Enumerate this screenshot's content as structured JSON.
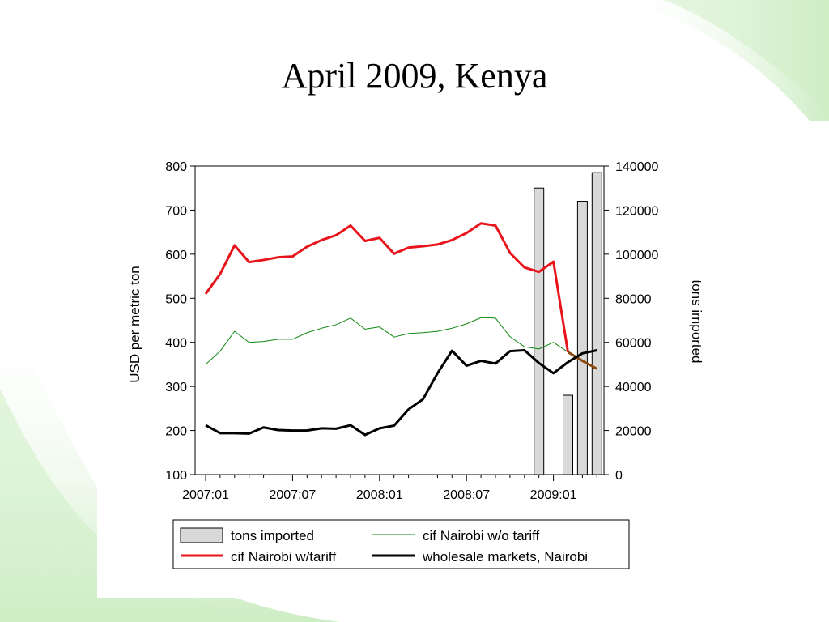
{
  "slide": {
    "title": "April 2009, Kenya"
  },
  "colors": {
    "red": "#e8141b",
    "green": "#118811",
    "black": "#000000",
    "bar_fill": "#d9d9d9",
    "bar_stroke": "#000000",
    "decor_green": "#b9e6ad"
  },
  "chart_data": {
    "type": "line",
    "title": "",
    "xlabel": "",
    "ylabel": "USD per metric ton",
    "y2label": "tons imported",
    "ylim": [
      100,
      800
    ],
    "y2lim": [
      0,
      140000
    ],
    "yticks": [
      100,
      200,
      300,
      400,
      500,
      600,
      700,
      800
    ],
    "y2ticks": [
      0,
      20000,
      40000,
      60000,
      80000,
      100000,
      120000,
      140000
    ],
    "x": [
      "2007:01",
      "2007:02",
      "2007:03",
      "2007:04",
      "2007:05",
      "2007:06",
      "2007:07",
      "2007:08",
      "2007:09",
      "2007:10",
      "2007:11",
      "2007:12",
      "2008:01",
      "2008:02",
      "2008:03",
      "2008:04",
      "2008:05",
      "2008:06",
      "2008:07",
      "2008:08",
      "2008:09",
      "2008:10",
      "2008:11",
      "2008:12",
      "2009:01",
      "2009:02",
      "2009:03",
      "2009:04"
    ],
    "xtick_labels": [
      "2007:01",
      "2007:07",
      "2008:01",
      "2008:07",
      "2009:01"
    ],
    "grid": false,
    "legend_position": "bottom",
    "series": [
      {
        "name": "tons imported",
        "kind": "bar",
        "axis": "right",
        "values": [
          null,
          null,
          null,
          null,
          null,
          null,
          null,
          null,
          null,
          null,
          null,
          null,
          null,
          null,
          null,
          null,
          null,
          null,
          null,
          null,
          null,
          null,
          null,
          130000,
          null,
          36000,
          124000,
          137000
        ]
      },
      {
        "name": "cif Nairobi w/o tariff",
        "kind": "line",
        "axis": "left",
        "color": "#118811",
        "width": 1,
        "values": [
          350,
          380,
          425,
          400,
          402,
          407,
          407,
          422,
          432,
          440,
          455,
          430,
          435,
          412,
          420,
          422,
          425,
          432,
          442,
          456,
          455,
          413,
          390,
          385,
          400,
          378,
          360,
          340
        ]
      },
      {
        "name": "cif Nairobi w/tariff",
        "kind": "line",
        "axis": "left",
        "color": "#e8141b",
        "width": 3,
        "values": [
          510,
          555,
          620,
          582,
          587,
          593,
          595,
          617,
          632,
          643,
          665,
          630,
          637,
          601,
          615,
          618,
          622,
          632,
          648,
          670,
          665,
          603,
          570,
          560,
          583,
          378,
          358,
          340
        ],
        "tail_color": "#8a4a10",
        "tail_from_index": 25
      },
      {
        "name": "wholesale markets, Nairobi",
        "kind": "line",
        "axis": "left",
        "color": "#000000",
        "width": 3,
        "values": [
          212,
          194,
          194,
          193,
          207,
          201,
          200,
          200,
          205,
          204,
          212,
          190,
          205,
          211,
          248,
          271,
          330,
          381,
          347,
          358,
          352,
          380,
          382,
          353,
          330,
          355,
          375,
          382
        ]
      }
    ]
  }
}
